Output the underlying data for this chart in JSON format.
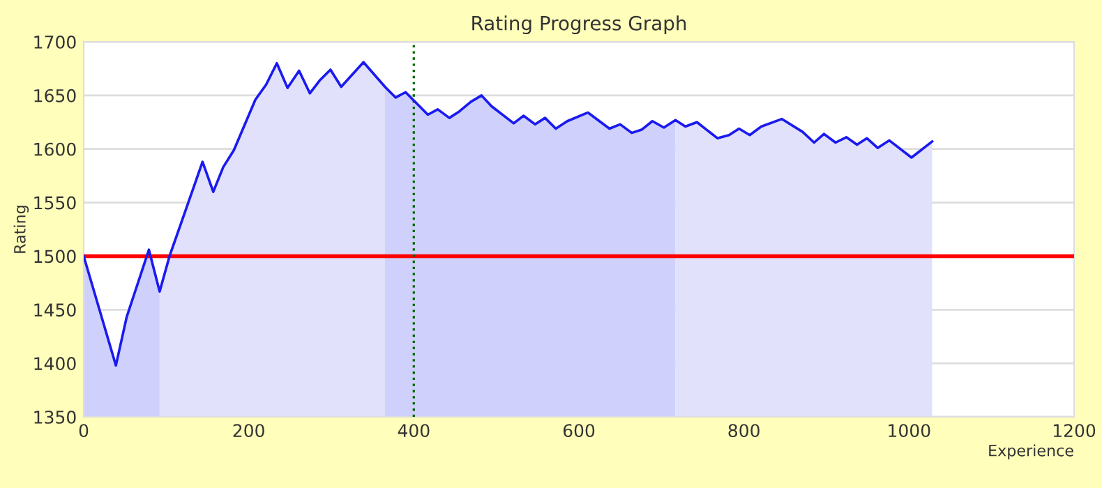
{
  "chart_data": {
    "type": "line",
    "title": "Rating Progress Graph",
    "xlabel": "Experience",
    "ylabel": "Rating",
    "xlim": [
      0,
      1200
    ],
    "xticks": [
      0,
      200,
      400,
      600,
      800,
      1000,
      1200
    ],
    "ylim": [
      1350,
      1700
    ],
    "yticks": [
      1350,
      1400,
      1450,
      1500,
      1550,
      1600,
      1650,
      1700
    ],
    "grid": "y",
    "legend": false,
    "marker": "none",
    "line_style": "solid",
    "series": [
      {
        "type": "area",
        "color": "#cfd0fb",
        "x": [
          0,
          39,
          52,
          79,
          92
        ],
        "values": [
          1500,
          1398,
          1443,
          1506,
          1467
        ]
      },
      {
        "type": "area",
        "color": "#e1e1fb",
        "x": [
          92,
          104,
          144,
          157,
          169,
          182,
          208,
          221,
          234,
          247,
          261,
          274,
          286,
          299,
          312,
          339,
          365
        ],
        "values": [
          1467,
          1500,
          1588,
          1560,
          1583,
          1599,
          1646,
          1660,
          1680,
          1657,
          1673,
          1652,
          1664,
          1674,
          1658,
          1681,
          1658
        ]
      },
      {
        "type": "area",
        "color": "#cfd0fb",
        "x": [
          365,
          378,
          390,
          417,
          429,
          443,
          455,
          469,
          482,
          494,
          521,
          533,
          547,
          559,
          572,
          586,
          611,
          637,
          650,
          664,
          676,
          689,
          703,
          717
        ],
        "values": [
          1658,
          1648,
          1653,
          1632,
          1637,
          1629,
          1635,
          1644,
          1650,
          1640,
          1624,
          1631,
          1623,
          1629,
          1619,
          1626,
          1634,
          1619,
          1623,
          1615,
          1618,
          1626,
          1620,
          1627
        ]
      },
      {
        "type": "area",
        "color": "#e1e1fb",
        "x": [
          717,
          729,
          743,
          768,
          782,
          794,
          807,
          821,
          846,
          871,
          885,
          897,
          911,
          924,
          937,
          949,
          962,
          976,
          1003,
          1028
        ],
        "values": [
          1627,
          1621,
          1625,
          1610,
          1613,
          1619,
          1613,
          1621,
          1628,
          1616,
          1606,
          1614,
          1606,
          1611,
          1604,
          1610,
          1601,
          1608,
          1592,
          1607
        ]
      },
      {
        "color": "#1a1af0",
        "x": [
          0,
          39,
          52,
          79,
          92,
          104,
          144,
          157,
          169,
          182,
          208,
          221,
          234,
          247,
          261,
          274,
          286,
          299,
          312,
          339,
          365,
          378,
          390,
          417,
          429,
          443,
          455,
          469,
          482,
          494,
          521,
          533,
          547,
          559,
          572,
          586,
          611,
          637,
          650,
          664,
          676,
          689,
          703,
          717,
          729,
          743,
          768,
          782,
          794,
          807,
          821,
          846,
          871,
          885,
          897,
          911,
          924,
          937,
          949,
          962,
          976,
          1003,
          1028
        ],
        "values": [
          1500,
          1398,
          1443,
          1506,
          1467,
          1500,
          1588,
          1560,
          1583,
          1599,
          1646,
          1660,
          1680,
          1657,
          1673,
          1652,
          1664,
          1674,
          1658,
          1681,
          1658,
          1648,
          1653,
          1632,
          1637,
          1629,
          1635,
          1644,
          1650,
          1640,
          1624,
          1631,
          1623,
          1629,
          1619,
          1626,
          1634,
          1619,
          1623,
          1615,
          1618,
          1626,
          1620,
          1627,
          1621,
          1625,
          1610,
          1613,
          1619,
          1613,
          1621,
          1628,
          1616,
          1606,
          1614,
          1606,
          1611,
          1604,
          1610,
          1601,
          1608,
          1592,
          1607
        ]
      }
    ],
    "ref_lines": [
      {
        "axis": "y",
        "value": 1500,
        "color": "#ff0000",
        "line_style": "solid"
      },
      {
        "axis": "x",
        "value": 400,
        "color": "#006600",
        "line_style": "dotted"
      }
    ]
  }
}
